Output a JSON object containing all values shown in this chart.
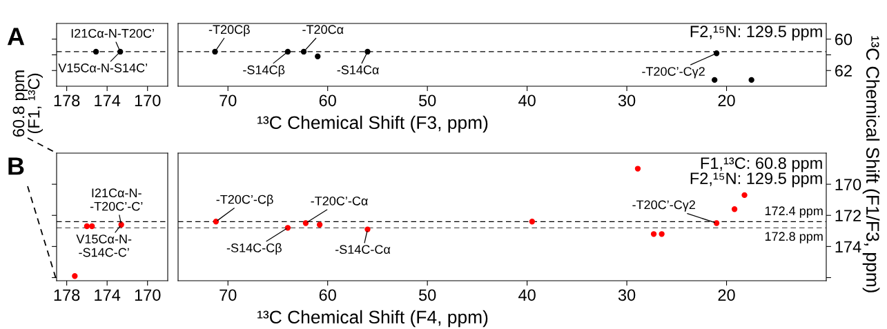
{
  "chart_data": [
    {
      "type": "scatter",
      "title": "A",
      "xlim": [
        179,
        168
      ],
      "xticks": [
        178,
        174,
        170
      ],
      "ylim": [
        63,
        59
      ],
      "yticks": [
        60,
        61,
        62
      ],
      "tick_labels": "x",
      "ylabel": "60.8 ppm\n(F1, ¹³C)",
      "marker": "circle",
      "series": [
        {
          "color": "#000000",
          "x": [
            175.1,
            172.7
          ],
          "values": [
            60.8,
            60.8
          ]
        }
      ],
      "ref_lines": [
        {
          "axis": "y",
          "value": 60.8,
          "line_style": "dashed",
          "color": "#000000"
        }
      ],
      "annotations": [
        {
          "text": "I21Cα-N-T20C’",
          "x": 172.7,
          "y": 60.8
        },
        {
          "text": "V15Cα-N-S14C’",
          "x": 172.7,
          "y": 60.8
        }
      ]
    },
    {
      "type": "scatter",
      "xlim": [
        75,
        10
      ],
      "xticks": [
        70,
        60,
        50,
        40,
        30,
        20
      ],
      "ylim": [
        63,
        59
      ],
      "yticks": [
        60,
        {
          "value": 61,
          "label": null
        },
        62
      ],
      "xlabel": "¹³C Chemical Shift (F3, ppm)",
      "ylabel": "¹³C Chemical Shift (F1/F3, ppm)",
      "marker": "circle",
      "series": [
        {
          "color": "#000000",
          "x": [
            71.3,
            64.0,
            62.4,
            61.0,
            56.0,
            21.0,
            21.2,
            17.5
          ],
          "values": [
            60.8,
            60.8,
            60.8,
            61.1,
            60.8,
            60.9,
            62.6,
            62.6
          ]
        }
      ],
      "ref_lines": [
        {
          "axis": "y",
          "value": 60.8,
          "line_style": "dashed",
          "color": "#000000"
        }
      ],
      "annotations": [
        {
          "text": "-T20Cβ",
          "x": 71.3,
          "y": 60.8
        },
        {
          "text": "-T20Cα",
          "x": 62.4,
          "y": 60.8
        },
        {
          "text": "-S14Cβ",
          "x": 64.0,
          "y": 60.8
        },
        {
          "text": "-S14Cα",
          "x": 56.0,
          "y": 60.8
        },
        {
          "text": "-T20C’-Cγ2",
          "x": 21.0,
          "y": 60.9
        },
        "F2,¹⁵N: 129.5 ppm"
      ]
    },
    {
      "type": "scatter",
      "title": "B",
      "xlim": [
        179,
        168
      ],
      "xticks": [
        178,
        174,
        170
      ],
      "ylim": [
        176.2,
        168
      ],
      "yticks": [
        170,
        172,
        174,
        176
      ],
      "tick_labels": "x",
      "marker": "circle",
      "series": [
        {
          "color": "#ff0000",
          "x": [
            172.6,
            176.0,
            175.5,
            177.2
          ],
          "values": [
            172.6,
            172.7,
            172.7,
            175.9
          ]
        }
      ],
      "ref_lines": [
        {
          "axis": "y",
          "value": 172.4,
          "line_style": "dashed",
          "color": "#000000"
        },
        {
          "axis": "y",
          "value": 172.8,
          "line_style": "dashed",
          "color": "#555555"
        }
      ],
      "annotations": [
        {
          "text": "I21Cα-N-\n-T20C’-C’",
          "x": 172.6,
          "y": 172.6
        },
        {
          "text": "V15Cα-N-\n-S14C-C’",
          "x": 172.6,
          "y": 172.6
        }
      ]
    },
    {
      "type": "scatter",
      "xlim": [
        75,
        10
      ],
      "xticks": [
        70,
        60,
        50,
        40,
        30,
        20
      ],
      "ylim": [
        176.2,
        168
      ],
      "yticks": [
        170,
        172,
        174,
        {
          "value": 176,
          "label": null
        }
      ],
      "xlabel": "¹³C Chemical Shift (F4, ppm)",
      "marker": "circle",
      "series": [
        {
          "color": "#ff0000",
          "x": [
            71.2,
            62.2,
            60.8,
            64.0,
            56.0,
            39.5,
            28.9,
            27.3,
            26.5,
            21.0,
            19.2,
            18.2
          ],
          "values": [
            172.4,
            172.5,
            172.6,
            172.8,
            172.9,
            172.4,
            169.0,
            173.2,
            173.2,
            172.5,
            171.6,
            170.7
          ]
        }
      ],
      "ref_lines": [
        {
          "axis": "y",
          "value": 172.4,
          "label": "172.4 ppm",
          "line_style": "dashed",
          "color": "#000000"
        },
        {
          "axis": "y",
          "value": 172.8,
          "label": "172.8 ppm",
          "line_style": "dashed",
          "color": "#555555"
        }
      ],
      "annotations": [
        {
          "text": "-T20C’-Cβ",
          "x": 71.2,
          "y": 172.4
        },
        {
          "text": "-T20C’-Cα",
          "x": 62.2,
          "y": 172.5
        },
        {
          "text": "-S14C-Cβ",
          "x": 64.0,
          "y": 172.8
        },
        {
          "text": "-S14C-Cα",
          "x": 56.0,
          "y": 172.9
        },
        {
          "text": "-T20C’-Cγ2",
          "x": 21.0,
          "y": 172.5
        },
        "F1,¹³C: 60.8 ppm\nF2,¹⁵N: 129.5 ppm"
      ]
    }
  ]
}
